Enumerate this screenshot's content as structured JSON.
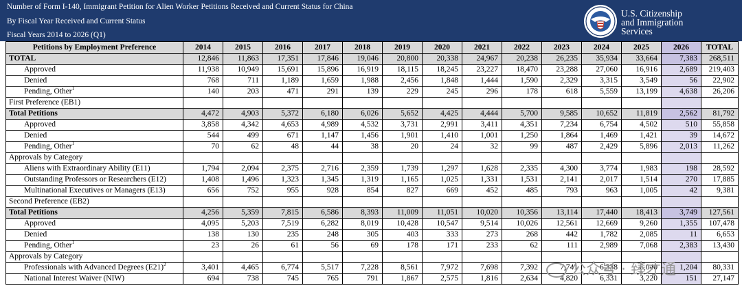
{
  "header": {
    "title": "Number of Form I-140, Immigrant Petition for Alien Worker Petitions Received and Current Status for China",
    "subtitle": "By Fiscal Year Received and Current Status",
    "years": "Fiscal Years 2014 to 2026 (Q1)"
  },
  "agency": {
    "line1": "U.S. Citizenship",
    "line2": "and Immigration",
    "line3": "Services"
  },
  "table": {
    "columns": [
      "Petitions by Employment Preference",
      "2014",
      "2015",
      "2016",
      "2017",
      "2018",
      "2019",
      "2020",
      "2021",
      "2022",
      "2023",
      "2024",
      "2025",
      "2026",
      "TOTAL"
    ],
    "rows": [
      {
        "label": "TOTAL",
        "type": "total",
        "values": [
          "12,846",
          "11,863",
          "17,351",
          "17,846",
          "19,046",
          "20,800",
          "20,338",
          "24,967",
          "20,238",
          "26,235",
          "35,934",
          "33,664",
          "7,383",
          "268,511"
        ]
      },
      {
        "label": "Approved",
        "type": "sub",
        "values": [
          "11,938",
          "10,949",
          "15,691",
          "15,896",
          "16,919",
          "18,115",
          "18,245",
          "23,227",
          "18,470",
          "23,288",
          "27,060",
          "16,916",
          "2,689",
          "219,403"
        ]
      },
      {
        "label": "Denied",
        "type": "sub",
        "values": [
          "768",
          "711",
          "1,189",
          "1,659",
          "1,988",
          "2,456",
          "1,848",
          "1,444",
          "1,590",
          "2,329",
          "3,315",
          "3,549",
          "56",
          "22,902"
        ]
      },
      {
        "label": "Pending, Other",
        "sup": "1",
        "type": "sub",
        "values": [
          "140",
          "203",
          "471",
          "291",
          "139",
          "229",
          "245",
          "296",
          "178",
          "618",
          "5,559",
          "13,199",
          "4,638",
          "26,206"
        ]
      },
      {
        "label": "First Preference (EB1)",
        "type": "section",
        "values": [
          "",
          "",
          "",
          "",
          "",
          "",
          "",
          "",
          "",
          "",
          "",
          "",
          "",
          ""
        ]
      },
      {
        "label": "Total Petitions",
        "type": "total",
        "values": [
          "4,472",
          "4,903",
          "5,372",
          "6,180",
          "6,026",
          "5,652",
          "4,425",
          "4,444",
          "5,700",
          "9,585",
          "10,652",
          "11,819",
          "2,562",
          "81,792"
        ]
      },
      {
        "label": "Approved",
        "type": "sub",
        "values": [
          "3,858",
          "4,342",
          "4,653",
          "4,989",
          "4,532",
          "3,731",
          "2,991",
          "3,411",
          "4,351",
          "7,234",
          "6,754",
          "4,502",
          "510",
          "55,858"
        ]
      },
      {
        "label": "Denied",
        "type": "sub",
        "values": [
          "544",
          "499",
          "671",
          "1,147",
          "1,456",
          "1,901",
          "1,410",
          "1,001",
          "1,250",
          "1,864",
          "1,469",
          "1,421",
          "39",
          "14,672"
        ]
      },
      {
        "label": "Pending, Other",
        "sup": "1",
        "type": "sub",
        "values": [
          "70",
          "62",
          "48",
          "44",
          "38",
          "20",
          "24",
          "32",
          "99",
          "487",
          "2,429",
          "5,896",
          "2,013",
          "11,262"
        ]
      },
      {
        "label": "Approvals by Category",
        "type": "category",
        "values": [
          "",
          "",
          "",
          "",
          "",
          "",
          "",
          "",
          "",
          "",
          "",
          "",
          "",
          ""
        ]
      },
      {
        "label": "Aliens with Extraordinary Ability (E11)",
        "type": "sub",
        "values": [
          "1,794",
          "2,094",
          "2,375",
          "2,716",
          "2,359",
          "1,739",
          "1,297",
          "1,628",
          "2,335",
          "4,300",
          "3,774",
          "1,983",
          "198",
          "28,592"
        ]
      },
      {
        "label": "Outstanding Professors or Researchers (E12)",
        "type": "sub",
        "values": [
          "1,408",
          "1,496",
          "1,323",
          "1,345",
          "1,319",
          "1,165",
          "1,025",
          "1,331",
          "1,531",
          "2,141",
          "2,017",
          "1,514",
          "270",
          "17,885"
        ]
      },
      {
        "label": "Multinational Executives or Managers (E13)",
        "type": "sub",
        "values": [
          "656",
          "752",
          "955",
          "928",
          "854",
          "827",
          "669",
          "452",
          "485",
          "793",
          "963",
          "1,005",
          "42",
          "9,381"
        ]
      },
      {
        "label": "Second Preference (EB2)",
        "type": "section",
        "values": [
          "",
          "",
          "",
          "",
          "",
          "",
          "",
          "",
          "",
          "",
          "",
          "",
          "",
          ""
        ]
      },
      {
        "label": "Total Petitions",
        "type": "total",
        "values": [
          "4,256",
          "5,359",
          "7,815",
          "6,586",
          "8,393",
          "11,009",
          "11,051",
          "10,020",
          "10,356",
          "13,114",
          "17,440",
          "18,413",
          "3,749",
          "127,561"
        ]
      },
      {
        "label": "Approved",
        "type": "sub",
        "values": [
          "4,095",
          "5,203",
          "7,519",
          "6,282",
          "8,019",
          "10,428",
          "10,547",
          "9,514",
          "10,026",
          "12,561",
          "12,669",
          "9,260",
          "1,355",
          "107,478"
        ]
      },
      {
        "label": "Denied",
        "type": "sub",
        "values": [
          "138",
          "130",
          "235",
          "248",
          "305",
          "403",
          "333",
          "273",
          "268",
          "442",
          "1,782",
          "2,085",
          "11",
          "6,653"
        ]
      },
      {
        "label": "Pending, Other",
        "sup": "1",
        "type": "sub",
        "values": [
          "23",
          "26",
          "61",
          "56",
          "69",
          "178",
          "171",
          "233",
          "62",
          "111",
          "2,989",
          "7,068",
          "2,383",
          "13,430"
        ]
      },
      {
        "label": "Approvals by Category",
        "type": "category",
        "values": [
          "",
          "",
          "",
          "",
          "",
          "",
          "",
          "",
          "",
          "",
          "",
          "",
          "",
          ""
        ]
      },
      {
        "label": "Professionals with Advanced Degrees (E21)",
        "sup": "2",
        "type": "sub",
        "values": [
          "3,401",
          "4,465",
          "6,774",
          "5,517",
          "7,228",
          "8,561",
          "7,972",
          "7,698",
          "7,392",
          "7,741",
          "6,338",
          "6,040",
          "1,204",
          "80,331"
        ]
      },
      {
        "label": "National Interest Waiver (NIW)",
        "type": "sub",
        "values": [
          "694",
          "738",
          "745",
          "765",
          "791",
          "1,867",
          "2,575",
          "1,816",
          "2,634",
          "4,820",
          "6,331",
          "3,220",
          "151",
          "27,147"
        ]
      }
    ]
  },
  "watermark": {
    "text": "公众号 · 臻才通"
  },
  "colors": {
    "header_bg": "#1f3b6e",
    "row_gray": "#d9d9d9",
    "highlight_2026": "#ddd9ee"
  }
}
